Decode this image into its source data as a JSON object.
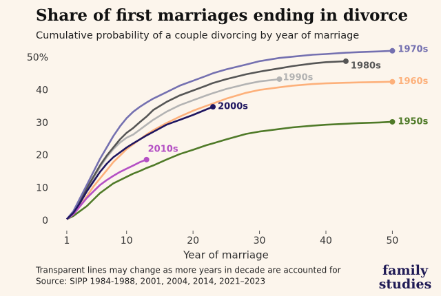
{
  "chart_data": {
    "type": "line",
    "title": "Share of first marriages ending in divorce",
    "subtitle": "Cumulative probability of a couple divorcing by year of marriage",
    "x_label": "Year of marriage",
    "footnote": "Transparent lines may change as more years in decade are accounted for",
    "source": "Source: SIPP 1984-1988, 2001, 2004, 2014, 2021–2023",
    "x": [
      1,
      2,
      3,
      4,
      5,
      6,
      7,
      8,
      9,
      10,
      11,
      12,
      13,
      14,
      16,
      18,
      20,
      22,
      23,
      25,
      28,
      30,
      33,
      35,
      38,
      40,
      43,
      45,
      48,
      50
    ],
    "xlim": [
      -2,
      54
    ],
    "xticks": [
      1,
      10,
      20,
      30,
      40,
      50
    ],
    "ylim": [
      -3,
      53
    ],
    "yticks": [
      0,
      10,
      20,
      30,
      40,
      {
        "value": 50,
        "label": "50%"
      }
    ],
    "grid": false,
    "series": [
      {
        "name": "1950s",
        "color": "#4f7a28",
        "values": [
          0.5,
          1.5,
          3,
          4.5,
          6.5,
          8.5,
          10,
          11.5,
          12.5,
          13.5,
          14.5,
          15.3,
          16.2,
          17,
          18.8,
          20.5,
          21.8,
          23.2,
          23.8,
          25,
          26.7,
          27.4,
          28.2,
          28.7,
          29.2,
          29.5,
          29.8,
          30,
          30.2,
          30.4
        ]
      },
      {
        "name": "1960s",
        "color": "#fdb07a",
        "values": [
          0.5,
          2,
          4.5,
          7.5,
          10.5,
          13,
          15.5,
          18,
          20,
          22,
          23.5,
          25,
          26.5,
          27.8,
          30,
          32,
          33.8,
          35.3,
          36,
          37.5,
          39.3,
          40.2,
          41,
          41.5,
          42,
          42.2,
          42.4,
          42.5,
          42.6,
          42.7
        ]
      },
      {
        "name": "1990s",
        "color": "#b3b3b3",
        "values": [
          0.5,
          2.5,
          6,
          9.5,
          13,
          16.5,
          19.5,
          22,
          24,
          25.5,
          26.5,
          28,
          29.5,
          31,
          33.5,
          35.5,
          37,
          38.5,
          39.2,
          40.5,
          42,
          42.8,
          43.5,
          null,
          null,
          null,
          null,
          null,
          null,
          null
        ]
      },
      {
        "name": "1980s",
        "color": "#555555",
        "values": [
          0.5,
          2.5,
          6,
          10,
          13.5,
          17,
          20,
          22.5,
          25,
          27,
          28.5,
          30.3,
          32,
          34,
          36.5,
          38.5,
          40,
          41.5,
          42.3,
          43.5,
          45,
          45.8,
          46.8,
          47.5,
          48.3,
          48.7,
          49,
          null,
          null,
          null
        ]
      },
      {
        "name": "1970s",
        "color": "#7470b0",
        "values": [
          0.5,
          3,
          7,
          11,
          15,
          19,
          22.5,
          26,
          29,
          31.5,
          33.5,
          35,
          36.3,
          37.5,
          39.5,
          41.5,
          43,
          44.5,
          45.3,
          46.5,
          48,
          49,
          50,
          50.4,
          51,
          51.2,
          51.6,
          51.8,
          52,
          52.2
        ]
      },
      {
        "name": "2010s",
        "color": "#b44fc4",
        "values": [
          0.5,
          2,
          4.5,
          7,
          9,
          11,
          12.5,
          13.8,
          15,
          16,
          17,
          18,
          18.8,
          null,
          null,
          null,
          null,
          null,
          null,
          null,
          null,
          null,
          null,
          null,
          null,
          null,
          null,
          null,
          null,
          null
        ]
      },
      {
        "name": "2000s",
        "color": "#1f1660",
        "values": [
          0.5,
          2.5,
          5.5,
          9,
          12,
          15,
          17.5,
          19.5,
          21,
          22.5,
          23.8,
          25,
          26.2,
          27.3,
          29.5,
          31,
          32.5,
          34.2,
          35,
          null,
          null,
          null,
          null,
          null,
          null,
          null,
          null,
          null,
          null,
          null
        ]
      }
    ]
  },
  "logo": {
    "line1": "family",
    "line2": "studies"
  }
}
